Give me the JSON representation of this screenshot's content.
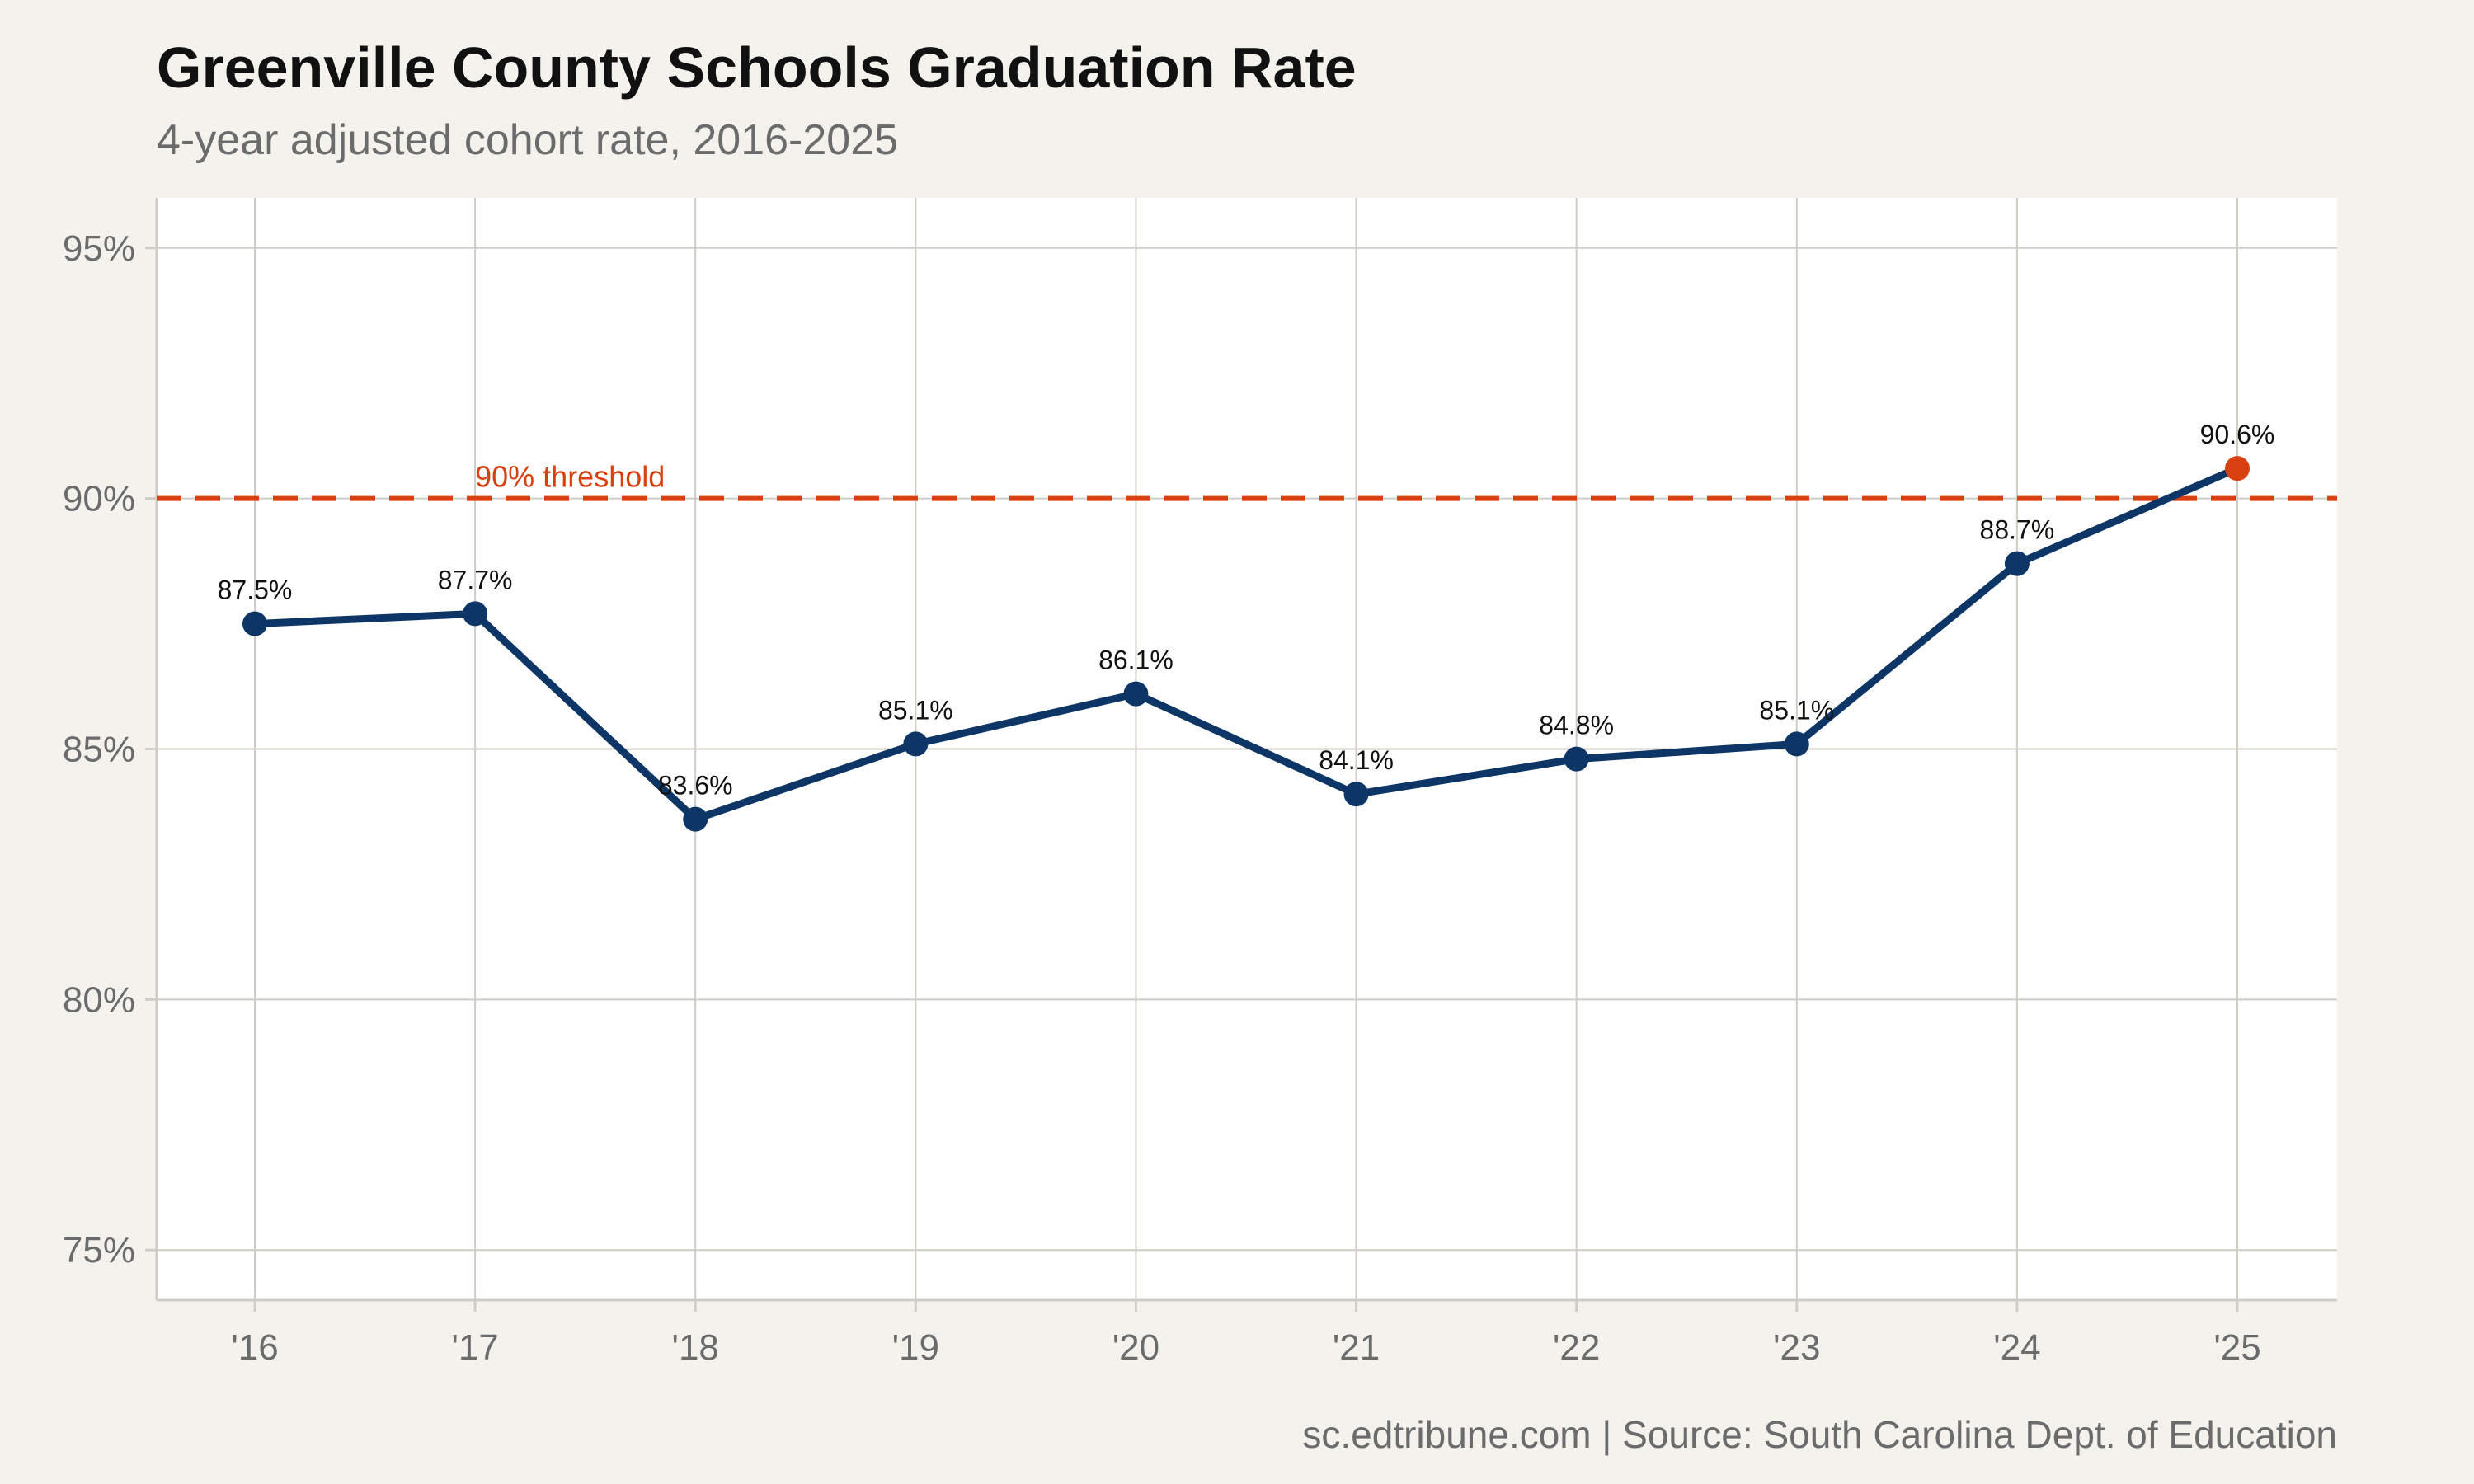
{
  "title": "Greenville County Schools Graduation Rate",
  "subtitle": "4-year adjusted cohort rate, 2016-2025",
  "caption": "sc.edtribune.com | Source: South Carolina Dept. of Education",
  "colors": {
    "background": "#f4f2ed",
    "panel": "#ffffff",
    "grid": "#cfcdc6",
    "line": "#0d3566",
    "highlight": "#d9400f",
    "threshold": "#d9400f"
  },
  "chart_data": {
    "type": "line",
    "title": "Greenville County Schools Graduation Rate",
    "subtitle": "4-year adjusted cohort rate, 2016-2025",
    "xlabel": "",
    "ylabel": "",
    "categories": [
      "'16",
      "'17",
      "'18",
      "'19",
      "'20",
      "'21",
      "'22",
      "'23",
      "'24",
      "'25"
    ],
    "series": [
      {
        "values": [
          87.5,
          87.7,
          83.6,
          85.1,
          86.1,
          84.1,
          84.8,
          85.1,
          88.7,
          90.6
        ],
        "labels": [
          "87.5%",
          "87.7%",
          "83.6%",
          "85.1%",
          "86.1%",
          "84.1%",
          "84.8%",
          "85.1%",
          "88.7%",
          "90.6%"
        ]
      }
    ],
    "highlight_index": 9,
    "ylim": [
      74,
      96
    ],
    "yticks": [
      75,
      80,
      85,
      90,
      95
    ],
    "ytick_labels": [
      "75%",
      "80%",
      "85%",
      "90%",
      "95%"
    ],
    "reference_line": {
      "value": 90,
      "label": "90% threshold",
      "style": "dashed"
    },
    "grid": true,
    "legend": "none"
  }
}
